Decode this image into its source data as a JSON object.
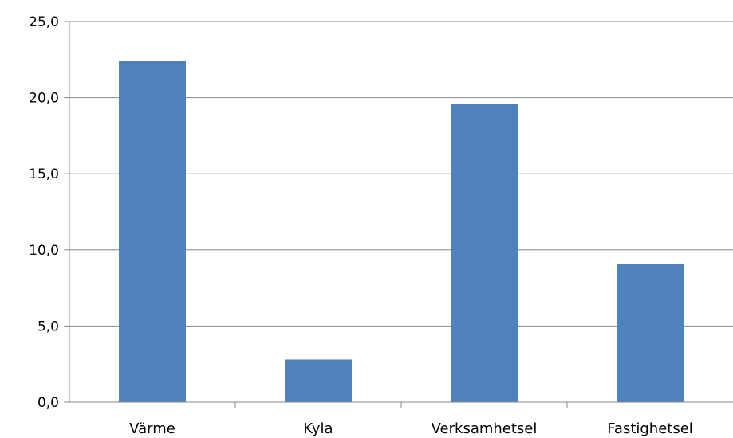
{
  "chart_data": {
    "type": "bar",
    "categories": [
      "Värme",
      "Kyla",
      "Verksamhetsel",
      "Fastighetsel"
    ],
    "values": [
      22.4,
      2.8,
      19.6,
      9.1
    ],
    "ylim": [
      0,
      25
    ],
    "yticks": [
      "0,0",
      "5,0",
      "10,0",
      "15,0",
      "20,0",
      "25,0"
    ],
    "ytick_values": [
      0,
      5,
      10,
      15,
      20,
      25
    ],
    "grid": true,
    "legend": "none",
    "bar_color": "#4f81bd"
  }
}
